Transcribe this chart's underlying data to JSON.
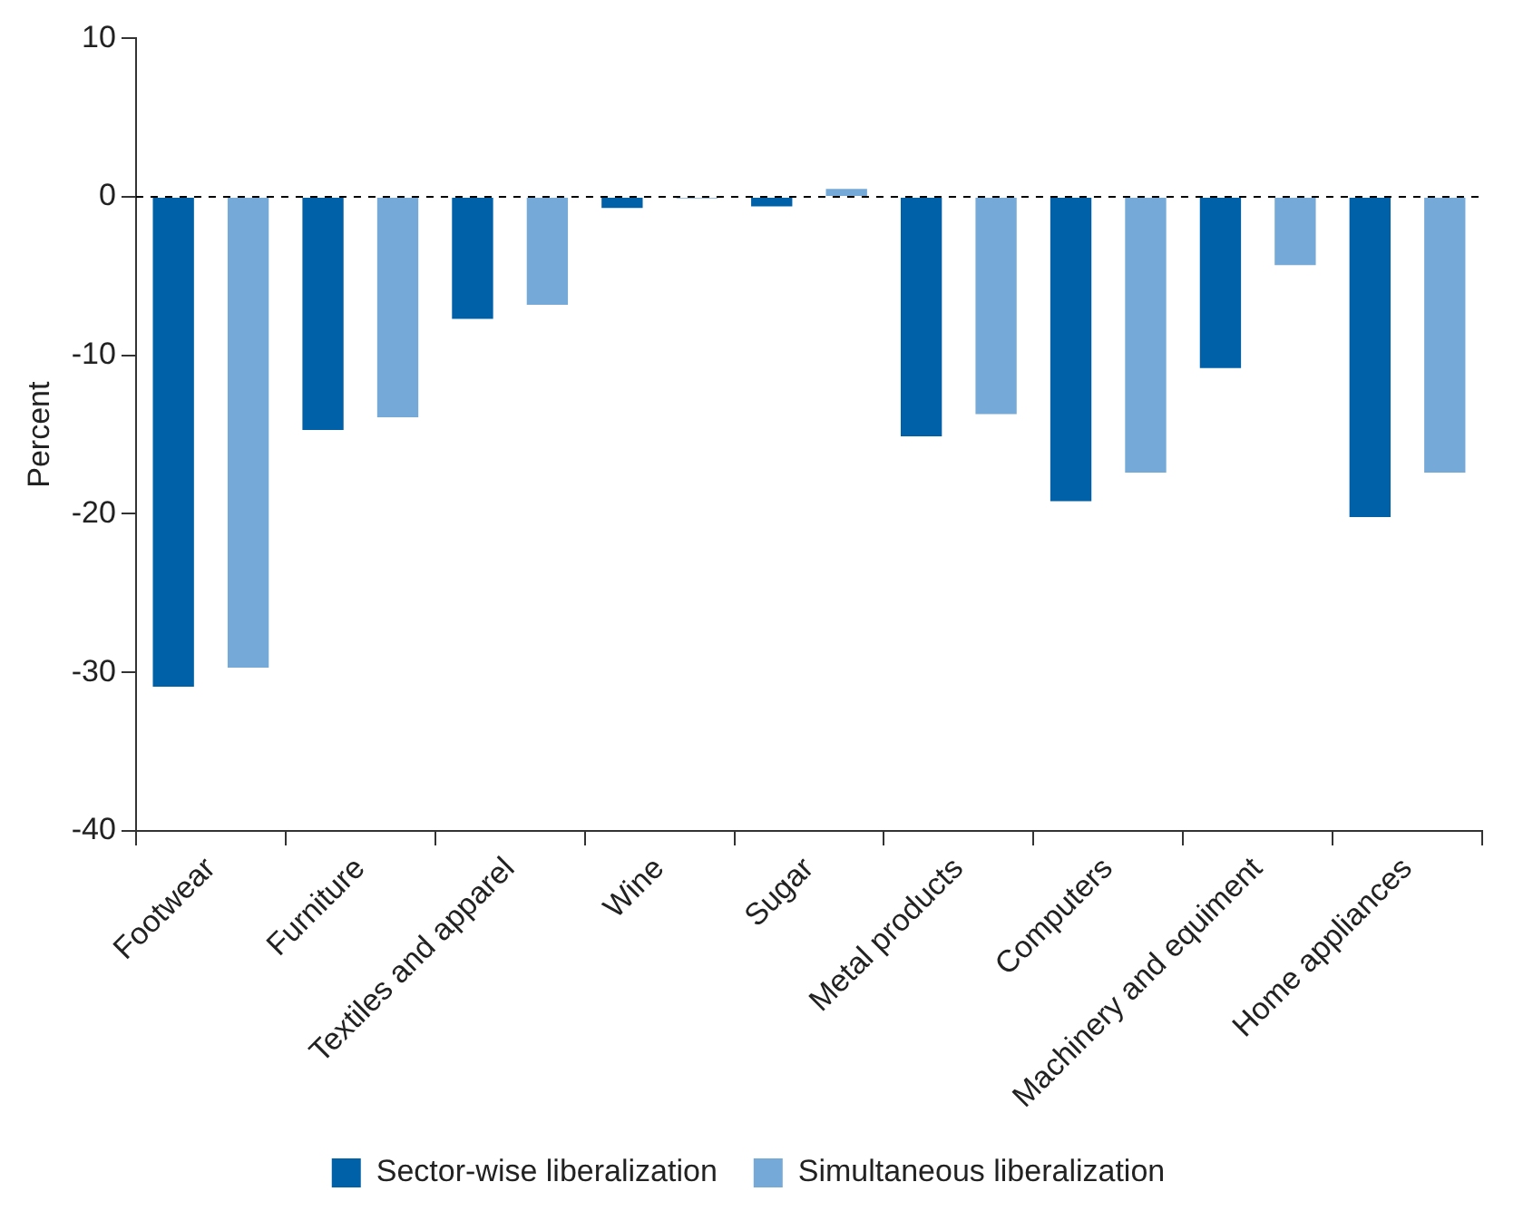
{
  "chart_data": {
    "type": "bar",
    "ylabel": "Percent",
    "categories": [
      "Footwear",
      "Furniture",
      "Textiles and apparel",
      "Wine",
      "Sugar",
      "Metal products",
      "Computers",
      "Machinery and equiment",
      "Home appliances"
    ],
    "series": [
      {
        "name": "Sector-wise liberalization",
        "color": "#0060a8",
        "values": [
          -30.9,
          -14.7,
          -7.7,
          -0.7,
          -0.6,
          -15.1,
          -19.2,
          -10.8,
          -20.2
        ]
      },
      {
        "name": "Simultaneous liberalization",
        "color": "#74a9d8",
        "values": [
          -29.7,
          -13.9,
          -6.8,
          -0.1,
          0.5,
          -13.7,
          -17.4,
          -4.3,
          -17.4
        ]
      }
    ],
    "ylim": [
      -40,
      10
    ],
    "yticks": [
      -40,
      -30,
      -20,
      -10,
      0,
      10
    ],
    "ref_lines": [
      {
        "axis": "y",
        "value": 0,
        "line_style": "dashed",
        "color": "#000000"
      }
    ],
    "legend": "bottom"
  }
}
